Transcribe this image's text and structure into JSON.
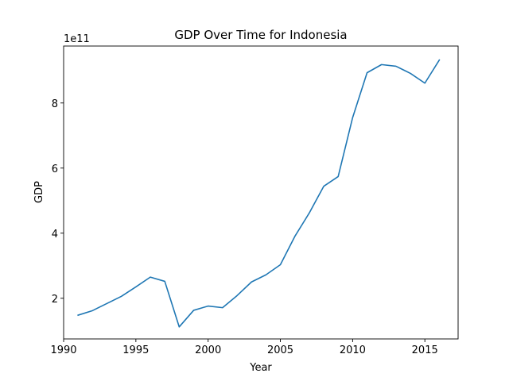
{
  "chart_data": {
    "type": "line",
    "title": "GDP Over Time for Indonesia",
    "xlabel": "Year",
    "ylabel": "GDP",
    "y_offset_label": "1e11",
    "y_scale": 100000000000.0,
    "xlim": [
      1990,
      2017.3
    ],
    "ylim": [
      75000000000.0,
      975000000000.0
    ],
    "x_ticks": [
      1990,
      1995,
      2000,
      2005,
      2010,
      2015
    ],
    "y_ticks": [
      200000000000.0,
      400000000000.0,
      600000000000.0,
      800000000000.0
    ],
    "y_tick_labels": [
      "2",
      "4",
      "6",
      "8"
    ],
    "grid": false,
    "line_color": "#1f77b4",
    "series": [
      {
        "x": [
          1991,
          1992,
          1993,
          1994,
          1995,
          1996,
          1997,
          1998,
          1999,
          2000,
          2001,
          2002,
          2003,
          2004,
          2005,
          2006,
          2007,
          2008,
          2009,
          2010,
          2011,
          2012,
          2013,
          2014,
          2015,
          2016
        ],
        "values": [
          148000000000.0,
          162000000000.0,
          184000000000.0,
          206000000000.0,
          235000000000.0,
          265000000000.0,
          252000000000.0,
          112000000000.0,
          163000000000.0,
          176000000000.0,
          171000000000.0,
          208000000000.0,
          250000000000.0,
          272000000000.0,
          303000000000.0,
          390000000000.0,
          462000000000.0,
          544000000000.0,
          574000000000.0,
          755000000000.0,
          893000000000.0,
          918000000000.0,
          913000000000.0,
          891000000000.0,
          861000000000.0,
          932000000000.0
        ]
      }
    ]
  }
}
